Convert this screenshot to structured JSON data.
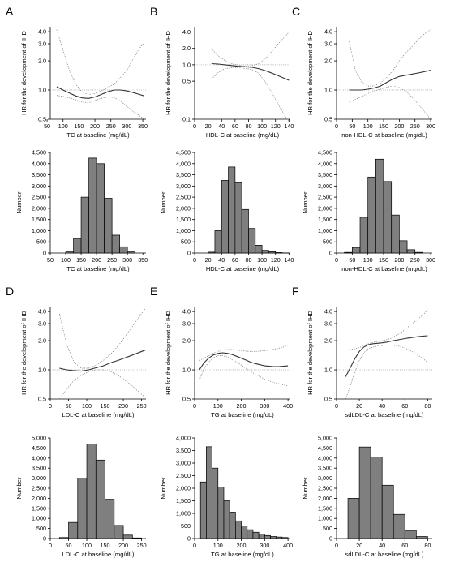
{
  "chart_data": [
    {
      "id": "A",
      "type": "line",
      "panel_label": "A",
      "xlabel": "TC at baseline (mg/dL)",
      "ylabel": "HR for the development of IHD",
      "xlim": [
        60,
        360
      ],
      "xticks": [
        50,
        100,
        150,
        200,
        250,
        300,
        350
      ],
      "ylim": [
        0.5,
        4.5
      ],
      "yscale": "log",
      "yticks": [
        0.5,
        1.0,
        2.0,
        3.0,
        4.0
      ],
      "reference_hr": 1.0,
      "series": [
        {
          "role": "hr",
          "x": [
            80,
            100,
            120,
            140,
            160,
            180,
            200,
            220,
            240,
            260,
            280,
            300,
            320,
            340,
            355
          ],
          "y": [
            1.08,
            1.0,
            0.93,
            0.87,
            0.83,
            0.82,
            0.85,
            0.9,
            0.96,
            1.0,
            1.0,
            0.98,
            0.94,
            0.9,
            0.87
          ]
        },
        {
          "role": "upper",
          "x": [
            80,
            100,
            120,
            140,
            160,
            180,
            200,
            220,
            240,
            260,
            280,
            300,
            320,
            340,
            355
          ],
          "y": [
            4.2,
            2.6,
            1.6,
            1.15,
            0.95,
            0.9,
            0.92,
            0.98,
            1.06,
            1.15,
            1.35,
            1.6,
            2.1,
            2.7,
            3.1
          ]
        },
        {
          "role": "lower",
          "x": [
            80,
            100,
            120,
            140,
            160,
            180,
            200,
            220,
            240,
            260,
            280,
            300,
            320,
            340,
            355
          ],
          "y": [
            0.88,
            0.86,
            0.83,
            0.79,
            0.75,
            0.74,
            0.78,
            0.82,
            0.85,
            0.84,
            0.77,
            0.68,
            0.6,
            0.54,
            0.5
          ]
        }
      ]
    },
    {
      "id": "A-hist",
      "type": "bar",
      "xlabel": "TC at baseline (mg/dL)",
      "ylabel": "Number",
      "xlim": [
        50,
        360
      ],
      "xticks": [
        50,
        100,
        150,
        200,
        250,
        300,
        350
      ],
      "ylim": [
        0,
        4500
      ],
      "yticks": [
        0,
        500,
        1000,
        1500,
        2000,
        2500,
        3000,
        3500,
        4000,
        4500
      ],
      "bin_edges": [
        100,
        125,
        150,
        175,
        200,
        225,
        250,
        275,
        300,
        325
      ],
      "values": [
        50,
        650,
        2500,
        4250,
        4000,
        2450,
        800,
        280,
        50
      ]
    },
    {
      "id": "B",
      "type": "line",
      "panel_label": "B",
      "xlabel": "HDL-C at baseline (mg/dL)",
      "ylabel": "HR for the development of IHD",
      "xlim": [
        0,
        142
      ],
      "xticks": [
        0,
        20,
        40,
        60,
        80,
        100,
        120,
        140
      ],
      "ylim": [
        0.1,
        5.0
      ],
      "yscale": "log",
      "yticks": [
        0.1,
        0.5,
        1.0,
        2.0,
        4.0
      ],
      "reference_hr": 1.0,
      "series": [
        {
          "role": "hr",
          "x": [
            25,
            35,
            45,
            55,
            65,
            75,
            85,
            95,
            105,
            115,
            125,
            135,
            140
          ],
          "y": [
            1.05,
            1.03,
            1.0,
            0.97,
            0.94,
            0.92,
            0.9,
            0.85,
            0.78,
            0.7,
            0.62,
            0.55,
            0.52
          ]
        },
        {
          "role": "upper",
          "x": [
            25,
            35,
            45,
            55,
            65,
            75,
            85,
            95,
            105,
            115,
            125,
            135,
            140
          ],
          "y": [
            2.0,
            1.45,
            1.2,
            1.05,
            0.98,
            0.95,
            0.96,
            1.05,
            1.3,
            1.8,
            2.5,
            3.4,
            4.0
          ]
        },
        {
          "role": "lower",
          "x": [
            25,
            35,
            45,
            55,
            65,
            75,
            85,
            95,
            105,
            115,
            125,
            135,
            140
          ],
          "y": [
            0.55,
            0.72,
            0.85,
            0.88,
            0.88,
            0.86,
            0.82,
            0.7,
            0.48,
            0.3,
            0.18,
            0.11,
            0.09
          ]
        }
      ]
    },
    {
      "id": "B-hist",
      "type": "bar",
      "xlabel": "HDL-C at baseline (mg/dL)",
      "ylabel": "Number",
      "xlim": [
        0,
        142
      ],
      "xticks": [
        0,
        20,
        40,
        60,
        80,
        100,
        120,
        140
      ],
      "ylim": [
        0,
        4500
      ],
      "yticks": [
        0,
        500,
        1000,
        1500,
        2000,
        2500,
        3000,
        3500,
        4000,
        4500
      ],
      "bin_edges": [
        20,
        30,
        40,
        50,
        60,
        70,
        80,
        90,
        100,
        110,
        120,
        130,
        140
      ],
      "values": [
        40,
        1000,
        3250,
        3850,
        3150,
        1950,
        1100,
        350,
        120,
        60,
        20,
        5
      ]
    },
    {
      "id": "C",
      "type": "line",
      "panel_label": "C",
      "xlabel": "non-HDL-C at baseline (mg/dL)",
      "ylabel": "HR for the development of IHD",
      "xlim": [
        0,
        305
      ],
      "xticks": [
        0,
        50,
        100,
        150,
        200,
        250,
        300
      ],
      "ylim": [
        0.5,
        4.5
      ],
      "yscale": "log",
      "yticks": [
        0.5,
        1.0,
        2.0,
        3.0,
        4.0
      ],
      "reference_hr": 1.0,
      "series": [
        {
          "role": "hr",
          "x": [
            40,
            60,
            80,
            100,
            120,
            140,
            160,
            180,
            200,
            220,
            240,
            260,
            280,
            300
          ],
          "y": [
            1.0,
            1.0,
            1.0,
            1.02,
            1.05,
            1.1,
            1.2,
            1.3,
            1.38,
            1.42,
            1.46,
            1.5,
            1.55,
            1.6
          ]
        },
        {
          "role": "upper",
          "x": [
            40,
            60,
            80,
            100,
            120,
            140,
            160,
            180,
            200,
            220,
            240,
            260,
            280,
            300
          ],
          "y": [
            3.2,
            1.6,
            1.22,
            1.1,
            1.1,
            1.18,
            1.35,
            1.6,
            2.0,
            2.4,
            2.8,
            3.3,
            3.8,
            4.2
          ]
        },
        {
          "role": "lower",
          "x": [
            40,
            60,
            80,
            100,
            120,
            140,
            160,
            180,
            200,
            220,
            240,
            260,
            280,
            300
          ],
          "y": [
            0.75,
            0.8,
            0.86,
            0.92,
            0.98,
            1.02,
            1.07,
            1.1,
            1.06,
            0.98,
            0.85,
            0.72,
            0.6,
            0.5
          ]
        }
      ]
    },
    {
      "id": "C-hist",
      "type": "bar",
      "xlabel": "non-HDL-C at baseline (mg/dL)",
      "ylabel": "Number",
      "xlim": [
        0,
        305
      ],
      "xticks": [
        0,
        50,
        100,
        150,
        200,
        250,
        300
      ],
      "ylim": [
        0,
        4500
      ],
      "yticks": [
        0,
        500,
        1000,
        1500,
        2000,
        2500,
        3000,
        3500,
        4000,
        4500
      ],
      "bin_edges": [
        25,
        50,
        75,
        100,
        125,
        150,
        175,
        200,
        225,
        250,
        275
      ],
      "values": [
        30,
        250,
        1600,
        3400,
        4200,
        3200,
        1700,
        550,
        150,
        30
      ]
    },
    {
      "id": "D",
      "type": "line",
      "panel_label": "D",
      "xlabel": "LDL-C at baseline (mg/dL)",
      "ylabel": "HR for the development of IHD",
      "xlim": [
        0,
        262
      ],
      "xticks": [
        0,
        50,
        100,
        150,
        200,
        250
      ],
      "ylim": [
        0.5,
        4.5
      ],
      "yscale": "log",
      "yticks": [
        0.5,
        1.0,
        2.0,
        3.0,
        4.0
      ],
      "reference_hr": 1.0,
      "series": [
        {
          "role": "hr",
          "x": [
            25,
            45,
            65,
            85,
            105,
            125,
            145,
            165,
            185,
            205,
            225,
            245,
            260
          ],
          "y": [
            1.04,
            1.0,
            0.98,
            0.97,
            1.0,
            1.05,
            1.1,
            1.18,
            1.25,
            1.33,
            1.42,
            1.52,
            1.6
          ]
        },
        {
          "role": "upper",
          "x": [
            25,
            45,
            65,
            85,
            105,
            125,
            145,
            165,
            185,
            205,
            225,
            245,
            260
          ],
          "y": [
            3.8,
            1.8,
            1.2,
            1.04,
            1.04,
            1.12,
            1.25,
            1.45,
            1.75,
            2.2,
            2.8,
            3.6,
            4.3
          ]
        },
        {
          "role": "lower",
          "x": [
            25,
            45,
            65,
            85,
            105,
            125,
            145,
            165,
            185,
            205,
            225,
            245,
            260
          ],
          "y": [
            0.5,
            0.63,
            0.78,
            0.88,
            0.96,
            1.0,
            1.0,
            0.96,
            0.88,
            0.78,
            0.68,
            0.58,
            0.52
          ]
        }
      ]
    },
    {
      "id": "D-hist",
      "type": "bar",
      "xlabel": "LDL-C at baseline (mg/dL)",
      "ylabel": "Number",
      "xlim": [
        0,
        262
      ],
      "xticks": [
        0,
        50,
        100,
        150,
        200,
        250
      ],
      "ylim": [
        0,
        5000
      ],
      "yticks": [
        0,
        500,
        1000,
        1500,
        2000,
        2500,
        3000,
        3500,
        4000,
        4500,
        5000
      ],
      "bin_edges": [
        25,
        50,
        75,
        100,
        125,
        150,
        175,
        200,
        225,
        250
      ],
      "values": [
        50,
        800,
        3000,
        4700,
        3900,
        1950,
        650,
        170,
        30
      ]
    },
    {
      "id": "E",
      "type": "line",
      "panel_label": "E",
      "xlabel": "TG at baseline (mg/dL)",
      "ylabel": "HR for the development of IHD",
      "xlim": [
        0,
        410
      ],
      "xticks": [
        0,
        100,
        200,
        300,
        400
      ],
      "ylim": [
        0.5,
        4.5
      ],
      "yscale": "log",
      "yticks": [
        0.5,
        1.0,
        2.0,
        3.0,
        4.0
      ],
      "reference_hr": 1.0,
      "series": [
        {
          "role": "hr",
          "x": [
            20,
            40,
            60,
            80,
            100,
            120,
            140,
            160,
            180,
            200,
            220,
            240,
            260,
            280,
            300,
            320,
            340,
            360,
            380,
            400
          ],
          "y": [
            1.0,
            1.18,
            1.32,
            1.42,
            1.48,
            1.5,
            1.48,
            1.44,
            1.38,
            1.32,
            1.26,
            1.2,
            1.16,
            1.13,
            1.1,
            1.09,
            1.08,
            1.08,
            1.09,
            1.1
          ]
        },
        {
          "role": "upper",
          "x": [
            20,
            40,
            60,
            80,
            100,
            120,
            140,
            160,
            180,
            200,
            220,
            240,
            260,
            280,
            300,
            320,
            340,
            360,
            380,
            400
          ],
          "y": [
            1.25,
            1.32,
            1.4,
            1.48,
            1.55,
            1.6,
            1.62,
            1.62,
            1.6,
            1.58,
            1.56,
            1.55,
            1.55,
            1.56,
            1.58,
            1.6,
            1.63,
            1.67,
            1.72,
            1.8
          ]
        },
        {
          "role": "lower",
          "x": [
            20,
            40,
            60,
            80,
            100,
            120,
            140,
            160,
            180,
            200,
            220,
            240,
            260,
            280,
            300,
            320,
            340,
            360,
            380,
            400
          ],
          "y": [
            0.78,
            1.02,
            1.2,
            1.33,
            1.4,
            1.4,
            1.36,
            1.28,
            1.2,
            1.12,
            1.04,
            0.96,
            0.9,
            0.85,
            0.8,
            0.77,
            0.74,
            0.72,
            0.7,
            0.68
          ]
        }
      ]
    },
    {
      "id": "E-hist",
      "type": "bar",
      "xlabel": "TG at baseline (mg/dL)",
      "ylabel": "Number",
      "xlim": [
        0,
        410
      ],
      "xticks": [
        0,
        100,
        200,
        300,
        400
      ],
      "ylim": [
        0,
        4000
      ],
      "yticks": [
        0,
        500,
        1000,
        1500,
        2000,
        2500,
        3000,
        3500,
        4000
      ],
      "bin_edges": [
        25,
        50,
        75,
        100,
        125,
        150,
        175,
        200,
        225,
        250,
        275,
        300,
        325,
        350,
        375,
        400
      ],
      "values": [
        2250,
        3650,
        2800,
        2050,
        1500,
        1050,
        700,
        500,
        350,
        250,
        180,
        120,
        80,
        60,
        40
      ]
    },
    {
      "id": "F",
      "type": "line",
      "panel_label": "F",
      "xlabel": "sdLDL-C at baseline (mg/dL)",
      "ylabel": "HR for the development of IHD",
      "xlim": [
        0,
        84
      ],
      "xticks": [
        0,
        20,
        40,
        60,
        80
      ],
      "ylim": [
        0.5,
        4.5
      ],
      "yscale": "log",
      "yticks": [
        0.5,
        1.0,
        2.0,
        3.0,
        4.0
      ],
      "reference_hr": 1.0,
      "series": [
        {
          "role": "hr",
          "x": [
            8,
            12,
            16,
            20,
            24,
            28,
            32,
            36,
            40,
            44,
            48,
            52,
            56,
            60,
            64,
            68,
            72,
            76,
            80
          ],
          "y": [
            0.85,
            1.05,
            1.3,
            1.55,
            1.72,
            1.82,
            1.86,
            1.88,
            1.9,
            1.93,
            1.98,
            2.02,
            2.06,
            2.1,
            2.14,
            2.17,
            2.2,
            2.23,
            2.25
          ]
        },
        {
          "role": "upper",
          "x": [
            8,
            12,
            16,
            20,
            24,
            28,
            32,
            36,
            40,
            44,
            48,
            52,
            56,
            60,
            64,
            68,
            72,
            76,
            80
          ],
          "y": [
            1.6,
            1.62,
            1.65,
            1.7,
            1.78,
            1.86,
            1.92,
            1.96,
            2.0,
            2.05,
            2.12,
            2.25,
            2.4,
            2.6,
            2.85,
            3.1,
            3.4,
            3.7,
            4.2
          ]
        },
        {
          "role": "lower",
          "x": [
            8,
            12,
            16,
            20,
            24,
            28,
            32,
            36,
            40,
            44,
            48,
            52,
            56,
            60,
            64,
            68,
            72,
            76,
            80
          ],
          "y": [
            0.5,
            0.68,
            0.95,
            1.25,
            1.5,
            1.66,
            1.72,
            1.76,
            1.78,
            1.8,
            1.8,
            1.78,
            1.74,
            1.68,
            1.6,
            1.5,
            1.4,
            1.3,
            1.2
          ]
        }
      ]
    },
    {
      "id": "F-hist",
      "type": "bar",
      "xlabel": "sdLDL-C at baseline (mg/dL)",
      "ylabel": "Number",
      "xlim": [
        0,
        84
      ],
      "xticks": [
        0,
        20,
        40,
        60,
        80
      ],
      "ylim": [
        0,
        5000
      ],
      "yticks": [
        0,
        500,
        1000,
        1500,
        2000,
        2500,
        3000,
        3500,
        4000,
        4500,
        5000
      ],
      "bin_edges": [
        0,
        10,
        20,
        30,
        40,
        50,
        60,
        70,
        80
      ],
      "values": [
        0,
        2000,
        4550,
        4050,
        2650,
        1200,
        400,
        100
      ]
    }
  ]
}
